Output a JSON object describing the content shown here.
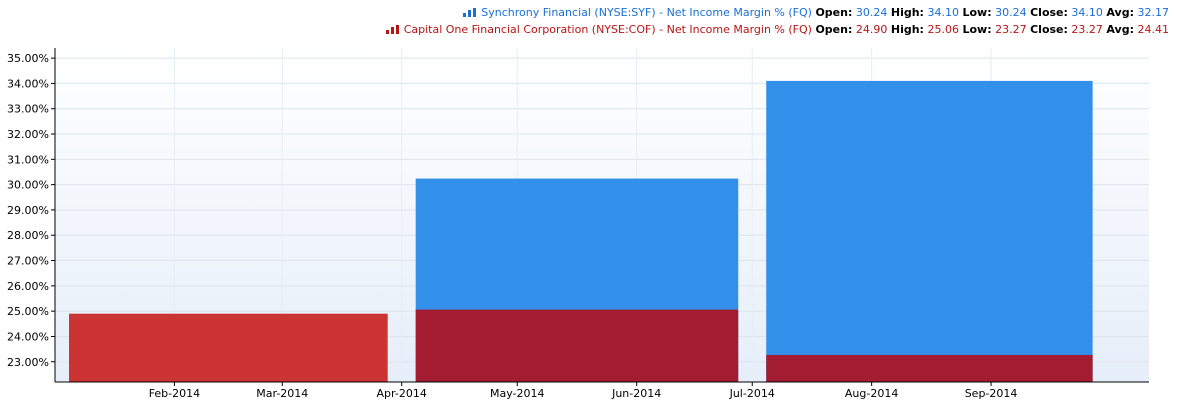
{
  "chart_data": {
    "type": "bar",
    "y_unit": "%",
    "ylim": [
      22.2,
      35.4
    ],
    "y_ticks": [
      23,
      24,
      25,
      26,
      27,
      28,
      29,
      30,
      31,
      32,
      33,
      34,
      35
    ],
    "y_tick_labels": [
      "23.00%",
      "24.00%",
      "25.00%",
      "26.00%",
      "27.00%",
      "28.00%",
      "29.00%",
      "30.00%",
      "31.00%",
      "32.00%",
      "33.00%",
      "34.00%",
      "35.00%"
    ],
    "x_range": [
      "2014-01-01",
      "2014-10-12"
    ],
    "x_ticks": [
      "2014-02-01",
      "2014-03-01",
      "2014-04-01",
      "2014-05-01",
      "2014-06-01",
      "2014-07-01",
      "2014-08-01",
      "2014-09-01"
    ],
    "x_tick_labels": [
      "Feb-2014",
      "Mar-2014",
      "Apr-2014",
      "May-2014",
      "Jun-2014",
      "Jul-2014",
      "Aug-2014",
      "Sep-2014"
    ],
    "grid": true,
    "legend_position": "top-right",
    "series": [
      {
        "name": "Synchrony Financial (NYSE:SYF) - Net Income Margin % (FQ)",
        "color": "#3390ea",
        "legend_icon": "bar-chart-icon",
        "stats": {
          "open": "30.24",
          "high": "34.10",
          "low": "30.24",
          "close": "34.10",
          "avg": "32.17"
        },
        "bars": [
          {
            "start": "2014-04-01",
            "end": "2014-06-30",
            "value": 30.24
          },
          {
            "start": "2014-07-01",
            "end": "2014-09-30",
            "value": 34.1
          }
        ]
      },
      {
        "name": "Capital One Financial Corporation (NYSE:COF) - Net Income Margin % (FQ)",
        "color": "#cc3333",
        "overlap_color": "#a31c32",
        "legend_icon": "bar-chart-icon",
        "stats": {
          "open": "24.90",
          "high": "25.06",
          "low": "23.27",
          "close": "23.27",
          "avg": "24.41"
        },
        "bars": [
          {
            "start": "2014-01-01",
            "end": "2014-03-31",
            "value": 24.9
          },
          {
            "start": "2014-04-01",
            "end": "2014-06-30",
            "value": 25.06
          },
          {
            "start": "2014-07-01",
            "end": "2014-09-30",
            "value": 23.27
          }
        ]
      }
    ]
  },
  "legend": {
    "labels": {
      "open": "Open:",
      "high": "High:",
      "low": "Low:",
      "close": "Close:",
      "avg": "Avg:"
    }
  }
}
